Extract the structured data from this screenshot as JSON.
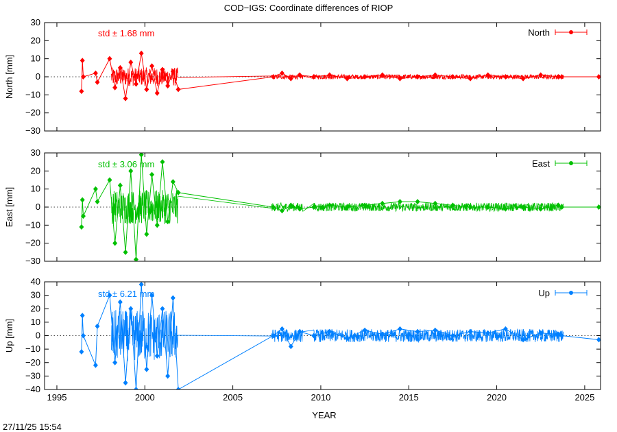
{
  "title": "COD−IGS: Coordinate differences of RIOP",
  "xlabel": "YEAR",
  "timestamp": "27/11/25 15:54",
  "xlim": [
    1994.3,
    2025.9
  ],
  "xticks": [
    "1995",
    "2000",
    "2005",
    "2010",
    "2015",
    "2020",
    "2025"
  ],
  "chart_data": [
    {
      "type": "line",
      "series": [
        {
          "name": "North",
          "color": "#ff0000"
        }
      ],
      "ylabel": "North [mm]",
      "ylim": [
        -30,
        30
      ],
      "yticks": [
        "30",
        "20",
        "10",
        "0",
        "−10",
        "−20",
        "−30"
      ],
      "std_label": "std ± 1.68 mm",
      "legend": "North",
      "legend_position": "top-right",
      "std": 1.68,
      "x": [
        1996.4,
        1996.45,
        1996.5,
        1997.2,
        1997.3,
        1998.0,
        1998.3,
        1998.6,
        1998.9,
        1999.2,
        1999.5,
        1999.8,
        2000.1,
        2000.4,
        2000.7,
        2001.0,
        2001.3,
        2001.6,
        2001.9,
        2007.3,
        2007.8,
        2008.3,
        2008.8,
        2009.6,
        2010.5,
        2011.5,
        2012.5,
        2013.5,
        2014.5,
        2015.5,
        2016.5,
        2017.5,
        2018.5,
        2019.5,
        2020.5,
        2021.5,
        2022.5,
        2023.5,
        2023.7,
        2025.8
      ],
      "y": [
        -8,
        9,
        0,
        2,
        -3,
        10,
        -6,
        5,
        -12,
        8,
        -4,
        13,
        -7,
        6,
        -9,
        4,
        -5,
        3,
        -7,
        0,
        2,
        -1,
        1,
        0,
        1,
        -1,
        0,
        1,
        -1,
        0,
        1,
        0,
        -1,
        1,
        0,
        -1,
        1,
        0,
        0,
        0
      ]
    },
    {
      "type": "line",
      "series": [
        {
          "name": "East",
          "color": "#00c000"
        }
      ],
      "ylabel": "East [mm]",
      "ylim": [
        -30,
        30
      ],
      "yticks": [
        "30",
        "20",
        "10",
        "0",
        "−10",
        "−20",
        "−30"
      ],
      "std_label": "std ± 3.06 mm",
      "legend": "East",
      "legend_position": "top-right",
      "std": 3.06,
      "x": [
        1996.4,
        1996.45,
        1996.5,
        1997.2,
        1997.3,
        1998.0,
        1998.3,
        1998.6,
        1998.9,
        1999.2,
        1999.5,
        1999.8,
        2000.1,
        2000.4,
        2000.7,
        2001.0,
        2001.3,
        2001.6,
        2001.9,
        2007.3,
        2007.8,
        2008.3,
        2008.8,
        2009.6,
        2010.5,
        2011.5,
        2012.5,
        2013.5,
        2014.5,
        2015.5,
        2016.5,
        2017.5,
        2018.5,
        2019.5,
        2020.5,
        2021.5,
        2022.5,
        2023.5,
        2023.7,
        2025.8
      ],
      "y": [
        -11,
        4,
        -5,
        10,
        3,
        15,
        -20,
        12,
        -25,
        20,
        -29,
        29,
        -15,
        18,
        -10,
        25,
        -8,
        14,
        8,
        0,
        -2,
        1,
        -1,
        0,
        1,
        0,
        1,
        2,
        3,
        3,
        2,
        1,
        0,
        0,
        -1,
        0,
        -1,
        1,
        0,
        0
      ]
    },
    {
      "type": "line",
      "series": [
        {
          "name": "Up",
          "color": "#0080ff"
        }
      ],
      "ylabel": "Up [mm]",
      "ylim": [
        -40,
        40
      ],
      "yticks": [
        "40",
        "30",
        "20",
        "10",
        "0",
        "−10",
        "−20",
        "−30",
        "−40"
      ],
      "std_label": "std ± 6.21 mm",
      "legend": "Up",
      "legend_position": "top-right",
      "std": 6.21,
      "x": [
        1996.4,
        1996.45,
        1996.5,
        1997.2,
        1997.3,
        1998.0,
        1998.3,
        1998.6,
        1998.9,
        1999.2,
        1999.5,
        1999.8,
        2000.1,
        2000.4,
        2000.7,
        2001.0,
        2001.3,
        2001.6,
        2001.9,
        2007.3,
        2007.8,
        2008.3,
        2008.8,
        2009.6,
        2010.5,
        2011.5,
        2012.5,
        2013.5,
        2014.5,
        2015.5,
        2016.5,
        2017.5,
        2018.5,
        2019.5,
        2020.5,
        2021.5,
        2022.5,
        2023.5,
        2023.7,
        2025.8
      ],
      "y": [
        -12,
        15,
        0,
        -22,
        7,
        30,
        -20,
        25,
        -35,
        20,
        -40,
        38,
        -25,
        30,
        -15,
        20,
        -30,
        28,
        -40,
        0,
        5,
        -8,
        3,
        0,
        3,
        -2,
        4,
        1,
        5,
        3,
        4,
        0,
        3,
        2,
        5,
        -3,
        2,
        1,
        0,
        -3
      ]
    }
  ]
}
